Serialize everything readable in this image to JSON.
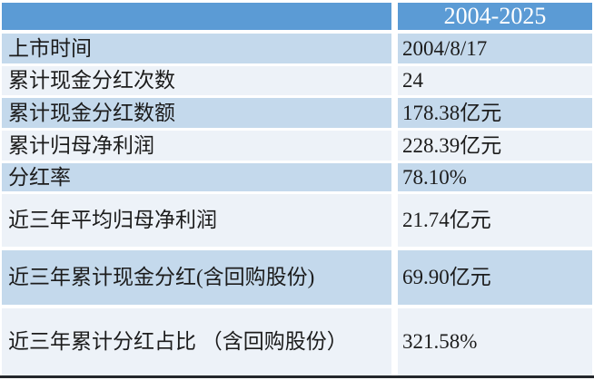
{
  "chart_data": {
    "type": "table",
    "title": "",
    "columns": [
      "",
      "2004-2025"
    ],
    "rows": [
      [
        "上市时间",
        "2004/8/17"
      ],
      [
        "累计现金分红次数",
        "24"
      ],
      [
        "累计现金分红数额",
        "178.38亿元"
      ],
      [
        "累计归母净利润",
        "228.39亿元"
      ],
      [
        "分红率",
        "78.10%"
      ],
      [
        "近三年平均归母净利润",
        "21.74亿元"
      ],
      [
        "近三年累计现金分红(含回购股份)",
        "69.90亿元"
      ],
      [
        "近三年累计分红占比 （含回购股份）",
        "321.58%"
      ]
    ],
    "layout_hints": {
      "header_fill": "banded",
      "value_column_alignment": "left",
      "header_value_alignment": "center"
    }
  },
  "colors": {
    "header-bg": "#5b9bd5",
    "header-text": "#ffffff",
    "band-blue": "#c4d9ec",
    "band-pale": "#edf2f8",
    "text": "#1c1c1c",
    "bottom-border": "#24272b",
    "divider": "#ffffff"
  }
}
